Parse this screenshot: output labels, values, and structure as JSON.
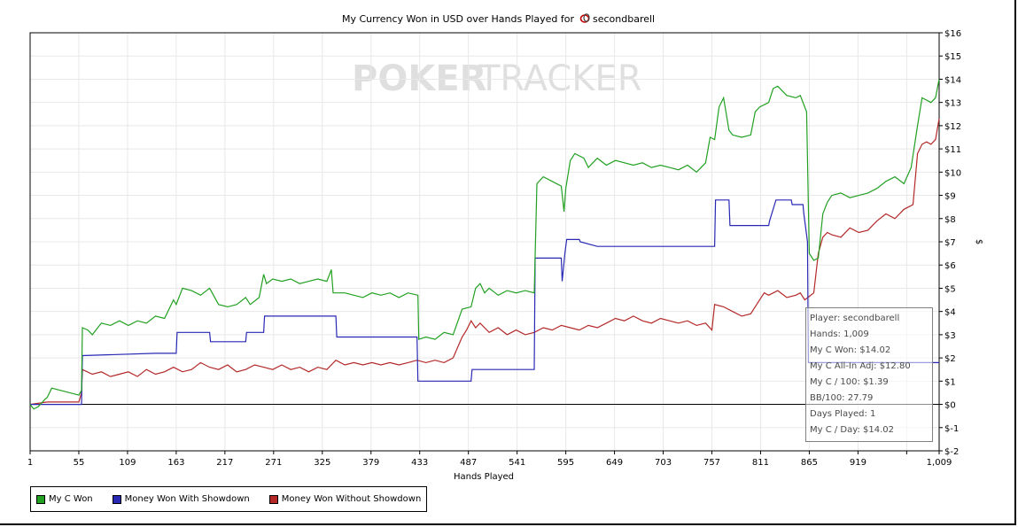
{
  "chart_data": {
    "type": "line",
    "title": "My Currency Won in USD over Hands Played for",
    "player_name": "secondbarell",
    "watermark_left": "POKER",
    "watermark_right": "TRACKER",
    "xlabel": "Hands Played",
    "ylabel": "$",
    "xlim": [
      1,
      1009
    ],
    "ylim": [
      -2,
      16
    ],
    "x_ticks": [
      "1",
      "55",
      "109",
      "163",
      "217",
      "271",
      "325",
      "379",
      "433",
      "487",
      "541",
      "595",
      "649",
      "703",
      "757",
      "811",
      "865",
      "919",
      "",
      "1,009"
    ],
    "y_ticks": [
      "$16",
      "$15",
      "$14",
      "$13",
      "$12",
      "$11",
      "$10",
      "$9",
      "$8",
      "$7",
      "$6",
      "$5",
      "$4",
      "$3",
      "$2",
      "$1",
      "$0",
      "$-1",
      "$-2"
    ],
    "grid": true,
    "legend_position": "bottom-left",
    "series": [
      {
        "name": "My C Won",
        "color": "#22a022",
        "points": [
          [
            1,
            0
          ],
          [
            5,
            -0.2
          ],
          [
            10,
            -0.1
          ],
          [
            17,
            0.2
          ],
          [
            20,
            0.3
          ],
          [
            25,
            0.7
          ],
          [
            35,
            0.6
          ],
          [
            45,
            0.5
          ],
          [
            55,
            0.4
          ],
          [
            58,
            0.6
          ],
          [
            59,
            3.3
          ],
          [
            65,
            3.2
          ],
          [
            70,
            3.0
          ],
          [
            80,
            3.5
          ],
          [
            90,
            3.4
          ],
          [
            100,
            3.6
          ],
          [
            110,
            3.4
          ],
          [
            120,
            3.6
          ],
          [
            130,
            3.5
          ],
          [
            140,
            3.8
          ],
          [
            150,
            3.7
          ],
          [
            160,
            4.5
          ],
          [
            163,
            4.3
          ],
          [
            170,
            5.0
          ],
          [
            180,
            4.9
          ],
          [
            190,
            4.7
          ],
          [
            200,
            5.0
          ],
          [
            210,
            4.3
          ],
          [
            220,
            4.2
          ],
          [
            230,
            4.3
          ],
          [
            240,
            4.6
          ],
          [
            245,
            4.3
          ],
          [
            255,
            4.6
          ],
          [
            260,
            5.6
          ],
          [
            263,
            5.2
          ],
          [
            270,
            5.4
          ],
          [
            280,
            5.3
          ],
          [
            290,
            5.4
          ],
          [
            300,
            5.2
          ],
          [
            310,
            5.3
          ],
          [
            320,
            5.4
          ],
          [
            330,
            5.3
          ],
          [
            335,
            5.8
          ],
          [
            337,
            4.8
          ],
          [
            350,
            4.8
          ],
          [
            360,
            4.7
          ],
          [
            370,
            4.6
          ],
          [
            380,
            4.8
          ],
          [
            390,
            4.7
          ],
          [
            400,
            4.8
          ],
          [
            410,
            4.6
          ],
          [
            420,
            4.8
          ],
          [
            431,
            4.7
          ],
          [
            432,
            2.8
          ],
          [
            440,
            2.9
          ],
          [
            450,
            2.8
          ],
          [
            460,
            3.1
          ],
          [
            470,
            3.0
          ],
          [
            480,
            4.1
          ],
          [
            490,
            4.2
          ],
          [
            495,
            5.0
          ],
          [
            500,
            5.2
          ],
          [
            505,
            4.8
          ],
          [
            510,
            5.0
          ],
          [
            520,
            4.7
          ],
          [
            530,
            4.9
          ],
          [
            540,
            4.8
          ],
          [
            550,
            4.9
          ],
          [
            560,
            4.8
          ],
          [
            563,
            9.5
          ],
          [
            570,
            9.8
          ],
          [
            580,
            9.6
          ],
          [
            590,
            9.4
          ],
          [
            593,
            8.3
          ],
          [
            595,
            9.3
          ],
          [
            600,
            10.5
          ],
          [
            605,
            10.8
          ],
          [
            615,
            10.6
          ],
          [
            620,
            10.2
          ],
          [
            630,
            10.6
          ],
          [
            640,
            10.3
          ],
          [
            650,
            10.5
          ],
          [
            660,
            10.4
          ],
          [
            670,
            10.3
          ],
          [
            680,
            10.4
          ],
          [
            690,
            10.2
          ],
          [
            700,
            10.3
          ],
          [
            710,
            10.2
          ],
          [
            720,
            10.1
          ],
          [
            730,
            10.3
          ],
          [
            740,
            10.0
          ],
          [
            750,
            10.4
          ],
          [
            755,
            11.5
          ],
          [
            760,
            11.4
          ],
          [
            765,
            12.8
          ],
          [
            770,
            13.2
          ],
          [
            776,
            11.8
          ],
          [
            780,
            11.6
          ],
          [
            790,
            11.5
          ],
          [
            800,
            11.6
          ],
          [
            805,
            12.6
          ],
          [
            810,
            12.8
          ],
          [
            820,
            13.0
          ],
          [
            825,
            13.6
          ],
          [
            830,
            13.7
          ],
          [
            840,
            13.3
          ],
          [
            850,
            13.2
          ],
          [
            855,
            13.3
          ],
          [
            860,
            12.8
          ],
          [
            862,
            12.6
          ],
          [
            865,
            6.5
          ],
          [
            870,
            6.2
          ],
          [
            875,
            6.3
          ],
          [
            880,
            8.2
          ],
          [
            885,
            8.7
          ],
          [
            890,
            9.0
          ],
          [
            900,
            9.1
          ],
          [
            910,
            8.9
          ],
          [
            920,
            9.0
          ],
          [
            930,
            9.1
          ],
          [
            940,
            9.3
          ],
          [
            950,
            9.6
          ],
          [
            960,
            9.8
          ],
          [
            970,
            9.5
          ],
          [
            978,
            10.2
          ],
          [
            985,
            12.0
          ],
          [
            990,
            13.2
          ],
          [
            1000,
            13.0
          ],
          [
            1005,
            13.2
          ],
          [
            1009,
            14.0
          ]
        ]
      },
      {
        "name": "Money Won With Showdown",
        "color": "#2828b4",
        "points": [
          [
            1,
            0
          ],
          [
            58,
            0
          ],
          [
            59,
            2.1
          ],
          [
            140,
            2.2
          ],
          [
            163,
            2.2
          ],
          [
            164,
            3.1
          ],
          [
            200,
            3.1
          ],
          [
            201,
            2.7
          ],
          [
            240,
            2.7
          ],
          [
            241,
            3.1
          ],
          [
            260,
            3.1
          ],
          [
            261,
            3.8
          ],
          [
            340,
            3.8
          ],
          [
            341,
            2.9
          ],
          [
            430,
            2.9
          ],
          [
            431,
            1.0
          ],
          [
            490,
            1.0
          ],
          [
            491,
            1.5
          ],
          [
            560,
            1.5
          ],
          [
            561,
            6.3
          ],
          [
            590,
            6.3
          ],
          [
            591,
            5.3
          ],
          [
            594,
            6.5
          ],
          [
            596,
            7.1
          ],
          [
            610,
            7.1
          ],
          [
            611,
            7.0
          ],
          [
            630,
            6.8
          ],
          [
            760,
            6.8
          ],
          [
            761,
            8.8
          ],
          [
            776,
            8.8
          ],
          [
            777,
            7.7
          ],
          [
            820,
            7.7
          ],
          [
            821,
            7.9
          ],
          [
            828,
            8.8
          ],
          [
            845,
            8.8
          ],
          [
            846,
            8.6
          ],
          [
            858,
            8.6
          ],
          [
            859,
            8.2
          ],
          [
            863,
            7.0
          ],
          [
            864,
            1.8
          ],
          [
            1009,
            1.8
          ]
        ]
      },
      {
        "name": "Money Won Without Showdown",
        "color": "#b42828",
        "points": [
          [
            1,
            0
          ],
          [
            20,
            0.1
          ],
          [
            35,
            0.1
          ],
          [
            55,
            0.1
          ],
          [
            58,
            0.5
          ],
          [
            59,
            1.5
          ],
          [
            70,
            1.3
          ],
          [
            80,
            1.4
          ],
          [
            90,
            1.2
          ],
          [
            100,
            1.3
          ],
          [
            110,
            1.4
          ],
          [
            120,
            1.2
          ],
          [
            130,
            1.5
          ],
          [
            140,
            1.3
          ],
          [
            150,
            1.4
          ],
          [
            160,
            1.6
          ],
          [
            170,
            1.4
          ],
          [
            180,
            1.5
          ],
          [
            190,
            1.8
          ],
          [
            200,
            1.6
          ],
          [
            210,
            1.5
          ],
          [
            220,
            1.7
          ],
          [
            230,
            1.4
          ],
          [
            240,
            1.5
          ],
          [
            250,
            1.7
          ],
          [
            260,
            1.6
          ],
          [
            270,
            1.5
          ],
          [
            280,
            1.7
          ],
          [
            290,
            1.5
          ],
          [
            300,
            1.6
          ],
          [
            310,
            1.4
          ],
          [
            320,
            1.6
          ],
          [
            330,
            1.5
          ],
          [
            340,
            1.9
          ],
          [
            350,
            1.7
          ],
          [
            360,
            1.8
          ],
          [
            370,
            1.7
          ],
          [
            380,
            1.8
          ],
          [
            390,
            1.7
          ],
          [
            400,
            1.8
          ],
          [
            410,
            1.7
          ],
          [
            420,
            1.8
          ],
          [
            430,
            1.9
          ],
          [
            440,
            1.8
          ],
          [
            450,
            1.9
          ],
          [
            460,
            1.8
          ],
          [
            470,
            2.0
          ],
          [
            480,
            2.9
          ],
          [
            485,
            3.2
          ],
          [
            490,
            3.6
          ],
          [
            495,
            3.3
          ],
          [
            500,
            3.5
          ],
          [
            510,
            3.1
          ],
          [
            520,
            3.3
          ],
          [
            530,
            3.0
          ],
          [
            540,
            3.2
          ],
          [
            550,
            3.0
          ],
          [
            560,
            3.1
          ],
          [
            570,
            3.3
          ],
          [
            580,
            3.2
          ],
          [
            590,
            3.4
          ],
          [
            600,
            3.3
          ],
          [
            610,
            3.2
          ],
          [
            620,
            3.4
          ],
          [
            630,
            3.3
          ],
          [
            640,
            3.5
          ],
          [
            650,
            3.7
          ],
          [
            660,
            3.6
          ],
          [
            670,
            3.8
          ],
          [
            680,
            3.6
          ],
          [
            690,
            3.5
          ],
          [
            700,
            3.7
          ],
          [
            710,
            3.6
          ],
          [
            720,
            3.5
          ],
          [
            730,
            3.6
          ],
          [
            740,
            3.4
          ],
          [
            750,
            3.5
          ],
          [
            757,
            3.2
          ],
          [
            760,
            4.3
          ],
          [
            770,
            4.2
          ],
          [
            780,
            4.0
          ],
          [
            790,
            3.8
          ],
          [
            800,
            3.9
          ],
          [
            810,
            4.5
          ],
          [
            815,
            4.8
          ],
          [
            820,
            4.7
          ],
          [
            830,
            4.9
          ],
          [
            840,
            4.6
          ],
          [
            850,
            4.7
          ],
          [
            855,
            4.8
          ],
          [
            860,
            4.5
          ],
          [
            870,
            4.8
          ],
          [
            875,
            6.5
          ],
          [
            880,
            7.2
          ],
          [
            885,
            7.4
          ],
          [
            890,
            7.3
          ],
          [
            900,
            7.2
          ],
          [
            910,
            7.6
          ],
          [
            920,
            7.4
          ],
          [
            930,
            7.5
          ],
          [
            940,
            7.9
          ],
          [
            950,
            8.2
          ],
          [
            960,
            8.0
          ],
          [
            970,
            8.4
          ],
          [
            980,
            8.6
          ],
          [
            985,
            10.8
          ],
          [
            990,
            11.2
          ],
          [
            995,
            11.3
          ],
          [
            1000,
            11.2
          ],
          [
            1005,
            11.4
          ],
          [
            1009,
            12.3
          ]
        ]
      }
    ]
  },
  "tooltip": {
    "player": "Player: secondbarell",
    "hands": "Hands: 1,009",
    "won": "My C Won: $14.02",
    "allin": "My C All-In Adj: $12.80",
    "per100": "My C / 100: $1.39",
    "bb100": "BB/100: 27.79",
    "days": "Days Played: 1",
    "perday": "My C / Day: $14.02"
  }
}
